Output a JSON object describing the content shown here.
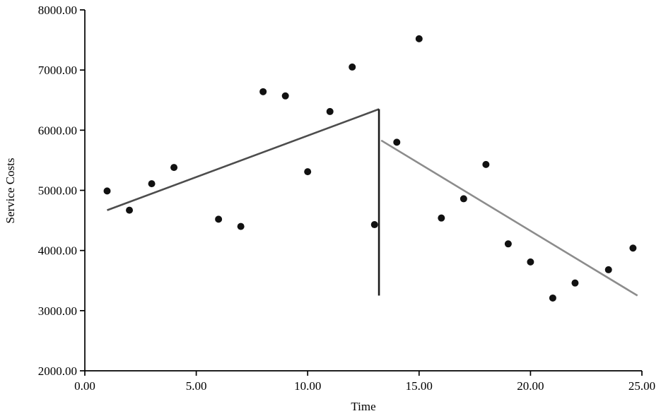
{
  "chart_data": {
    "type": "scatter",
    "title": "",
    "xlabel": "Time",
    "ylabel": "Service Costs",
    "xlim": [
      0,
      25
    ],
    "ylim": [
      2000,
      8000
    ],
    "xticks": [
      0,
      5,
      10,
      15,
      20,
      25
    ],
    "yticks": [
      2000,
      3000,
      4000,
      5000,
      6000,
      7000,
      8000
    ],
    "tick_decimals": 2,
    "grid": false,
    "legend": null,
    "point_color": "#111111",
    "axis_color": "#000000",
    "points": [
      [
        1,
        4990
      ],
      [
        2,
        4670
      ],
      [
        3,
        5110
      ],
      [
        4,
        5380
      ],
      [
        6,
        4520
      ],
      [
        7,
        4400
      ],
      [
        8,
        6640
      ],
      [
        9,
        6570
      ],
      [
        10,
        5310
      ],
      [
        11,
        6310
      ],
      [
        12,
        7050
      ],
      [
        13,
        4430
      ],
      [
        14,
        5800
      ],
      [
        15,
        7520
      ],
      [
        16,
        4540
      ],
      [
        17,
        4860
      ],
      [
        18,
        5430
      ],
      [
        19,
        4110
      ],
      [
        20,
        3810
      ],
      [
        21,
        3210
      ],
      [
        22,
        3460
      ],
      [
        23.5,
        3680
      ],
      [
        24.6,
        4040
      ]
    ],
    "lines": [
      {
        "name": "pre-intervention-trend",
        "color": "#4d4d4d",
        "points": [
          [
            1,
            4670
          ],
          [
            13.2,
            6350
          ]
        ]
      },
      {
        "name": "intervention-drop",
        "color": "#1a1a1a",
        "points": [
          [
            13.2,
            3250
          ],
          [
            13.2,
            6350
          ]
        ]
      },
      {
        "name": "post-intervention-trend",
        "color": "#8c8c8c",
        "points": [
          [
            13.3,
            5830
          ],
          [
            24.8,
            3250
          ]
        ]
      }
    ]
  }
}
